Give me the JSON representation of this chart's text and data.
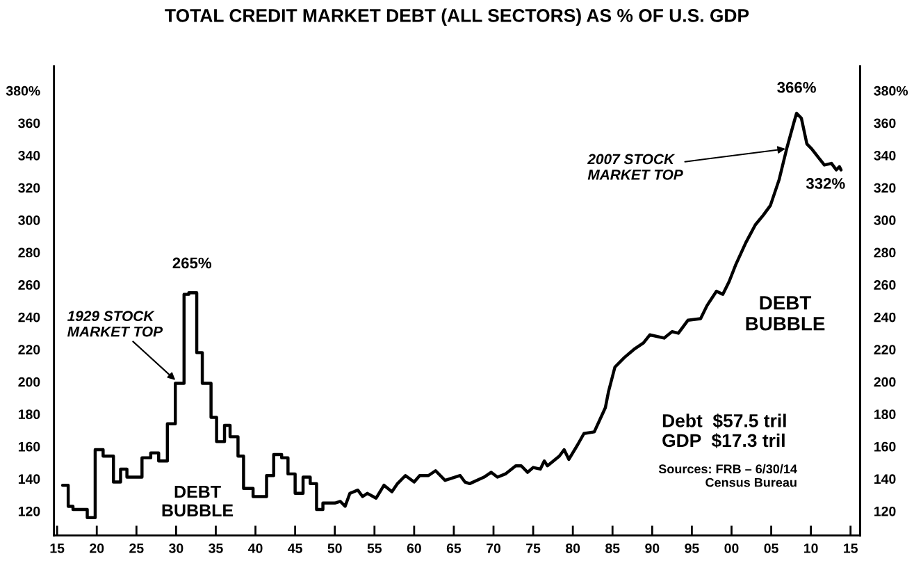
{
  "chart_data": {
    "type": "line",
    "title": "TOTAL CREDIT MARKET DEBT (ALL SECTORS) AS % OF U.S. GDP",
    "xlim": [
      1914.6,
      2016.2
    ],
    "ylim": [
      105,
      395
    ],
    "xticks": [
      {
        "value": 1915,
        "label": "15"
      },
      {
        "value": 1920,
        "label": "20"
      },
      {
        "value": 1925,
        "label": "25"
      },
      {
        "value": 1930,
        "label": "30"
      },
      {
        "value": 1935,
        "label": "35"
      },
      {
        "value": 1940,
        "label": "40"
      },
      {
        "value": 1945,
        "label": "45"
      },
      {
        "value": 1950,
        "label": "50"
      },
      {
        "value": 1955,
        "label": "55"
      },
      {
        "value": 1960,
        "label": "60"
      },
      {
        "value": 1965,
        "label": "65"
      },
      {
        "value": 1970,
        "label": "70"
      },
      {
        "value": 1975,
        "label": "75"
      },
      {
        "value": 1980,
        "label": "80"
      },
      {
        "value": 1985,
        "label": "85"
      },
      {
        "value": 1990,
        "label": "90"
      },
      {
        "value": 1995,
        "label": "95"
      },
      {
        "value": 2000,
        "label": "00"
      },
      {
        "value": 2005,
        "label": "05"
      },
      {
        "value": 2010,
        "label": "10"
      },
      {
        "value": 2015,
        "label": "15"
      }
    ],
    "yticks": [
      120,
      140,
      160,
      180,
      200,
      220,
      240,
      260,
      280,
      300,
      320,
      340,
      360,
      {
        "value": 380,
        "label": "380%"
      }
    ],
    "y2lim": [
      105,
      395
    ],
    "y2ticks": [
      120,
      140,
      160,
      180,
      200,
      220,
      240,
      260,
      280,
      300,
      320,
      340,
      360,
      {
        "value": 380,
        "label": "380%"
      }
    ],
    "grid": false,
    "series": [
      {
        "color": "#000000",
        "x": [
          1915.7,
          1916.4,
          1916.4,
          1917.0,
          1917.0,
          1918.8,
          1918.8,
          1919.8,
          1919.8,
          1920.8,
          1920.8,
          1922.1,
          1922.1,
          1923.0,
          1923.0,
          1923.8,
          1923.8,
          1925.7,
          1925.7,
          1926.8,
          1926.8,
          1927.8,
          1927.8,
          1928.9,
          1928.9,
          1929.9,
          1929.9,
          1931.0,
          1931.0,
          1931.6,
          1931.6,
          1932.6,
          1932.6,
          1933.3,
          1933.3,
          1934.4,
          1934.4,
          1935.1,
          1935.1,
          1936.1,
          1936.1,
          1936.8,
          1936.8,
          1937.8,
          1937.8,
          1938.5,
          1938.5,
          1939.7,
          1939.7,
          1941.4,
          1941.4,
          1942.3,
          1942.3,
          1943.3,
          1943.3,
          1944.1,
          1944.1,
          1945.0,
          1945.0,
          1946.0,
          1946.0,
          1946.9,
          1946.9,
          1947.7,
          1947.7,
          1948.5,
          1948.5,
          1950.0,
          1950.7,
          1951.3,
          1951.9,
          1952.9,
          1953.5,
          1954.1,
          1955.2,
          1956.2,
          1957.2,
          1957.9,
          1958.9,
          1960.0,
          1960.7,
          1961.8,
          1962.7,
          1963.9,
          1965.8,
          1966.4,
          1967.0,
          1968.8,
          1969.7,
          1970.5,
          1971.5,
          1972.8,
          1973.5,
          1974.3,
          1975.0,
          1975.9,
          1976.4,
          1976.8,
          1978.3,
          1978.9,
          1979.5,
          1980.6,
          1981.4,
          1982.7,
          1984.1,
          1984.5,
          1985.3,
          1986.5,
          1987.7,
          1988.9,
          1989.7,
          1991.5,
          1992.5,
          1993.3,
          1994.5,
          1996.1,
          1996.9,
          1998.1,
          1998.9,
          1999.7,
          2000.5,
          2001.8,
          2003.0,
          2004.0,
          2004.9,
          2006.0,
          2007.0,
          2007.9,
          2008.2,
          2008.8,
          2009.5,
          2010.1,
          2010.9,
          2011.7,
          2012.6,
          2013.2,
          2013.6,
          2013.8
        ],
        "values": [
          136,
          136,
          123,
          123,
          121,
          121,
          116,
          116,
          158,
          158,
          154,
          154,
          138,
          138,
          146,
          146,
          141,
          141,
          153,
          153,
          156,
          156,
          151,
          151,
          174,
          174,
          199,
          199,
          254,
          254,
          255,
          255,
          218,
          218,
          199,
          199,
          178,
          178,
          163,
          163,
          173,
          173,
          166,
          166,
          154,
          154,
          134,
          134,
          129,
          129,
          142,
          142,
          155,
          155,
          153,
          153,
          143,
          143,
          131,
          131,
          141,
          141,
          137,
          137,
          121,
          121,
          125,
          125,
          126,
          123,
          131,
          133,
          129,
          131,
          128,
          136,
          132,
          137,
          142,
          138,
          142,
          142,
          145,
          139,
          142,
          138,
          137,
          141,
          144,
          141,
          143,
          148,
          148,
          144,
          147,
          146,
          151,
          148,
          154,
          158,
          152,
          161,
          168,
          169,
          184,
          194,
          209,
          215,
          220,
          224,
          229,
          227,
          231,
          230,
          238,
          239,
          247,
          256,
          254,
          262,
          272,
          286,
          297,
          303,
          309,
          325,
          345,
          361,
          366,
          363,
          347,
          344,
          339,
          334,
          335,
          331,
          333,
          331
        ]
      }
    ],
    "annotations": [
      {
        "text": "265%",
        "x": 1932,
        "y": 255
      },
      {
        "text": "366%",
        "x": 2008.2,
        "y": 366
      },
      {
        "text": "332%",
        "x": 2013.8,
        "y": 331
      },
      {
        "text": "1929 STOCK\nMARKET TOP",
        "x": 1929.9,
        "y": 201
      },
      {
        "text": "2007 STOCK\nMARKET TOP",
        "x": 2006.8,
        "y": 344
      },
      "DEBT\nBUBBLE",
      "DEBT\nBUBBLE",
      "Debt  $57.5 tril\nGDP  $17.3 tril",
      "Sources: FRB – 6/30/14\nCensus Bureau"
    ]
  }
}
